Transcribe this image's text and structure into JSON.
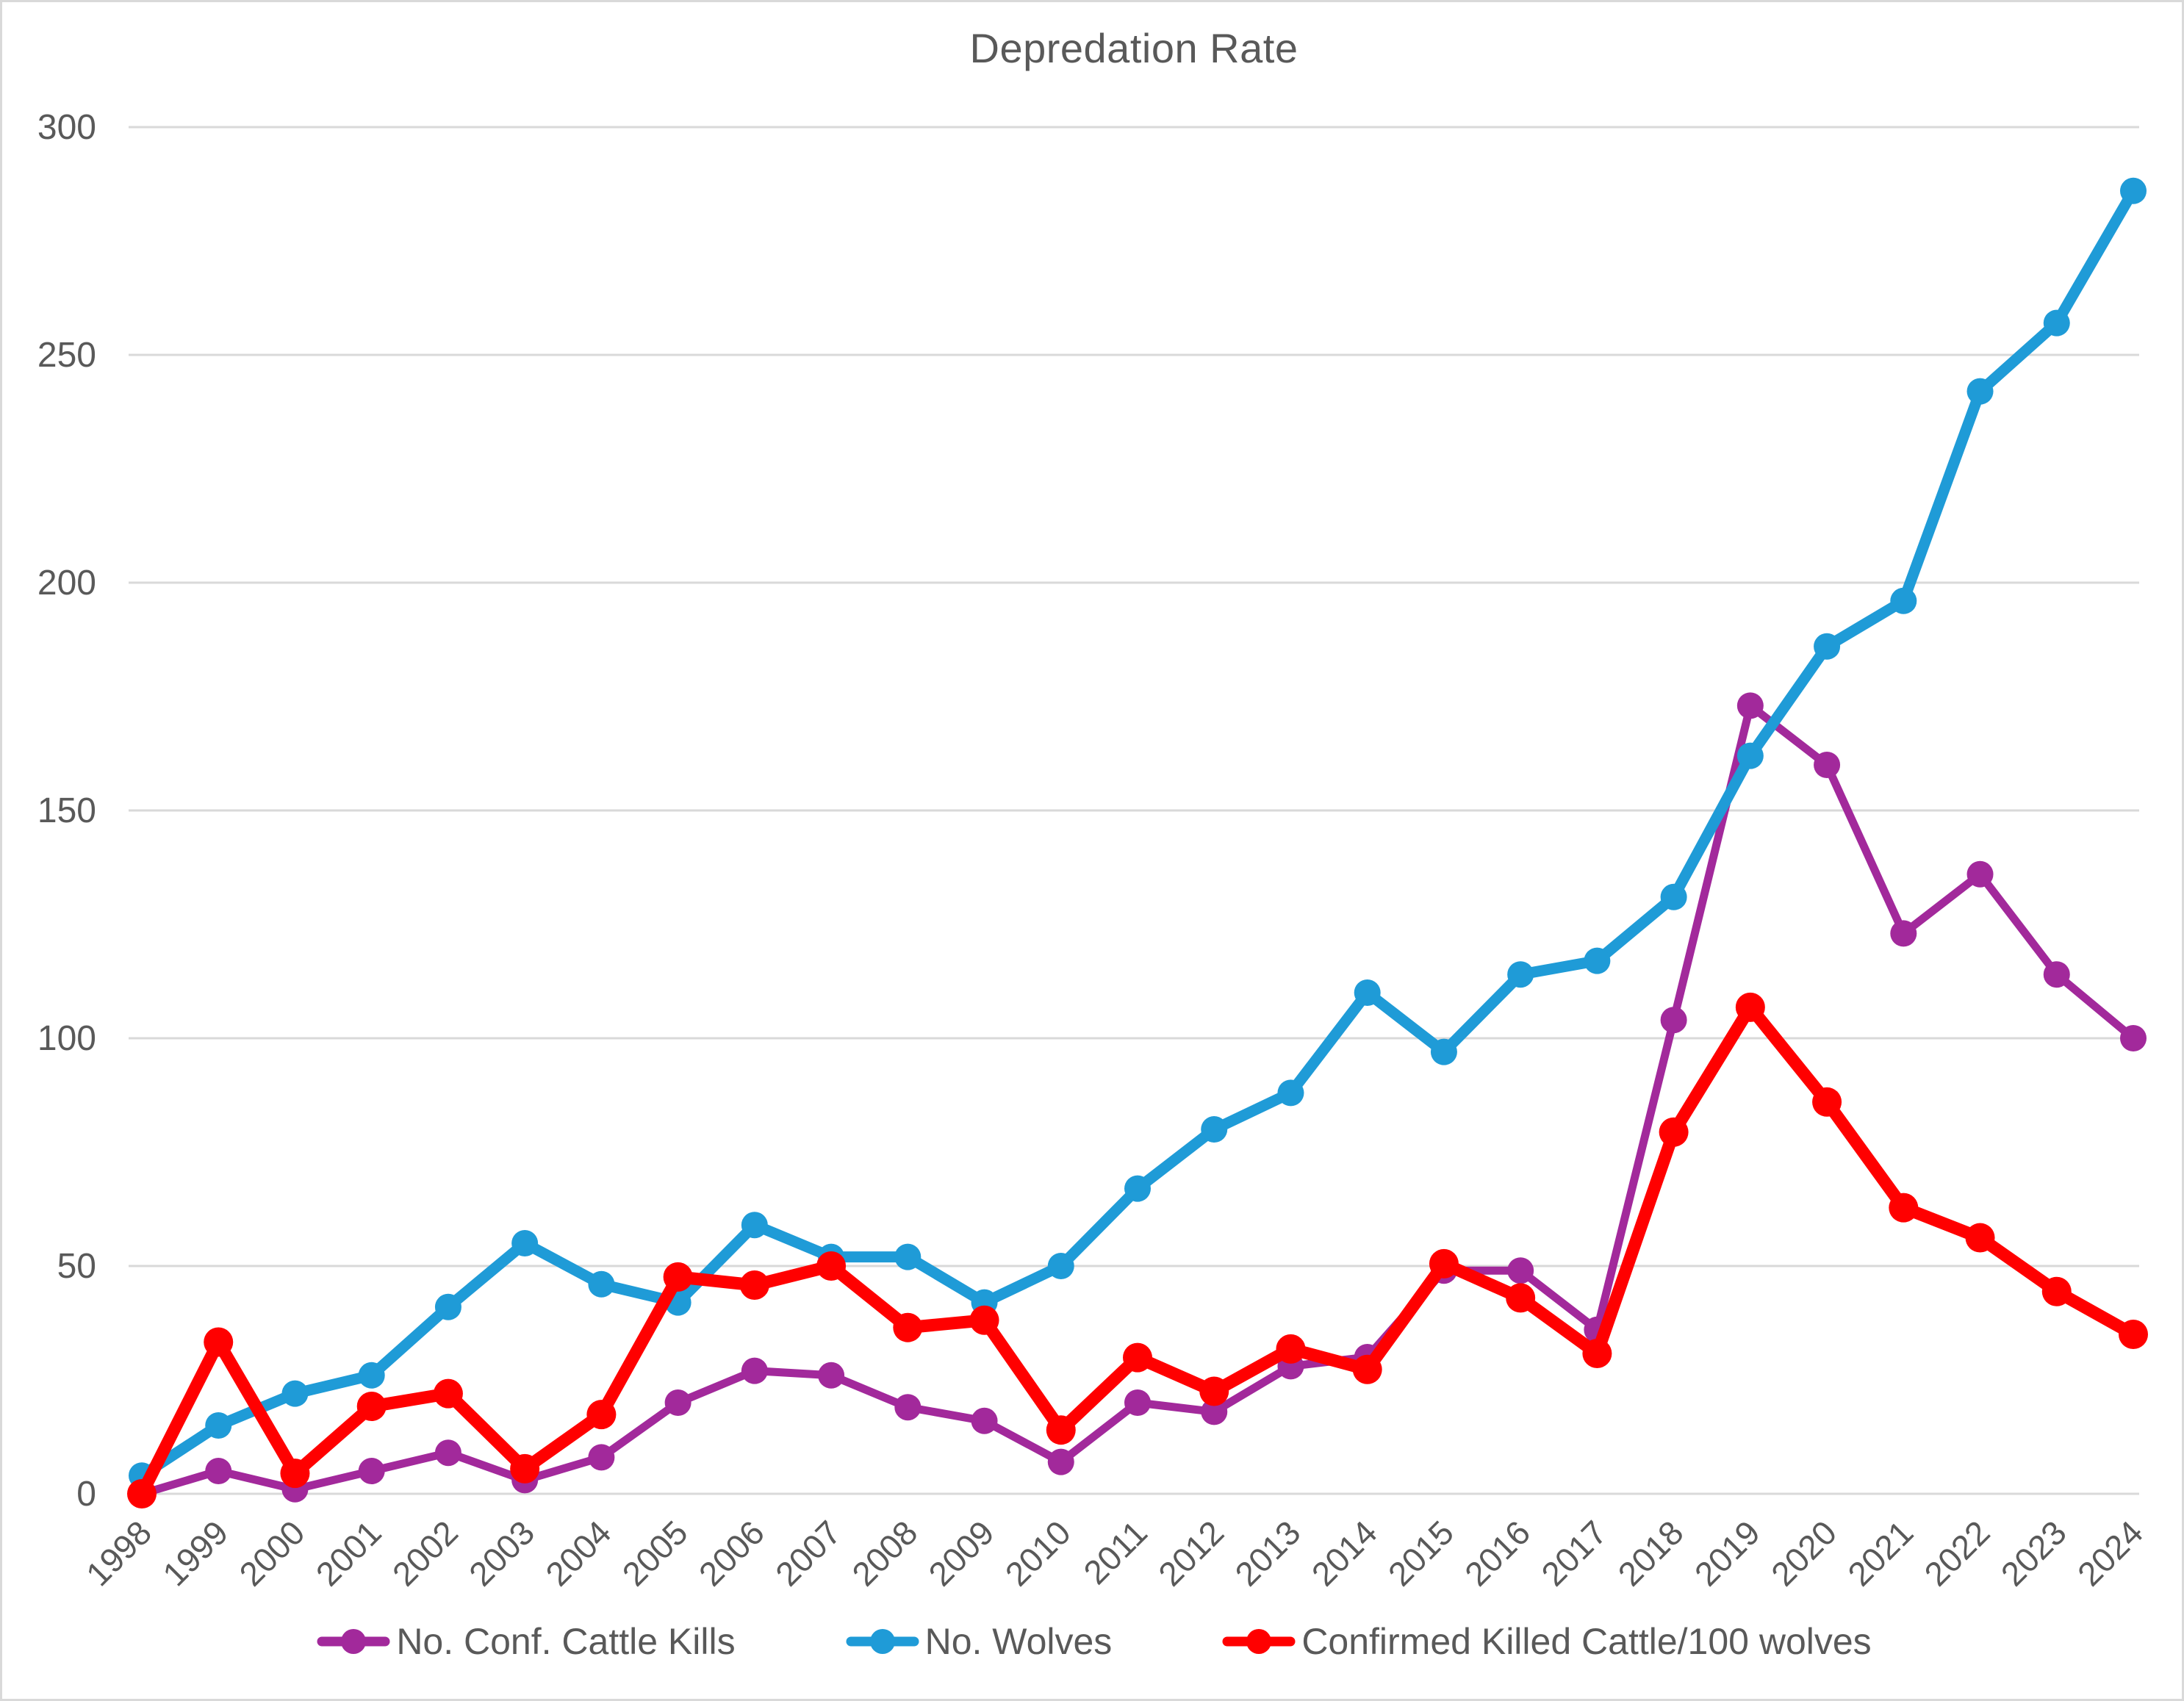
{
  "title": "Depredation Rate",
  "chart_data": {
    "type": "line",
    "title": "Depredation Rate",
    "categories": [
      "1998",
      "1999",
      "2000",
      "2001",
      "2002",
      "2003",
      "2004",
      "2005",
      "2006",
      "2007",
      "2008",
      "2009",
      "2010",
      "2011",
      "2012",
      "2013",
      "2014",
      "2015",
      "2016",
      "2017",
      "2018",
      "2019",
      "2020",
      "2021",
      "2022",
      "2023",
      "2024"
    ],
    "series": [
      {
        "name": "No. Conf. Cattle Kills",
        "color": "#A2299B",
        "values": [
          0,
          5,
          1,
          5,
          9,
          3,
          8,
          20,
          27,
          26,
          19,
          16,
          7,
          20,
          18,
          28,
          30,
          49,
          49,
          36,
          104,
          173,
          160,
          123,
          136,
          114,
          100
        ]
      },
      {
        "name": "No. Wolves",
        "color": "#1F9BD7",
        "values": [
          4,
          15,
          22,
          26,
          41,
          55,
          46,
          42,
          59,
          52,
          52,
          42,
          50,
          67,
          80,
          88,
          110,
          97,
          114,
          117,
          131,
          162,
          186,
          196,
          242,
          257,
          286
        ]
      },
      {
        "name": "Confirmed Killed Cattle/100 wolves",
        "color": "#FF0000",
        "values": [
          0,
          33.3,
          4.5,
          19.2,
          22,
          5.5,
          17.4,
          47.6,
          45.8,
          50,
          36.5,
          38.1,
          14,
          29.9,
          22.5,
          31.8,
          27.3,
          50.5,
          43,
          30.8,
          79.4,
          106.8,
          86,
          62.8,
          56.2,
          44.4,
          35
        ]
      }
    ],
    "xlabel": "",
    "ylabel": "",
    "ylim": [
      0,
      300
    ],
    "yticks": [
      0,
      50,
      100,
      150,
      200,
      250,
      300
    ],
    "grid": true,
    "legend_position": "bottom",
    "gridline_color": "#D9D9D9",
    "tick_label_color": "#595959",
    "title_color": "#595959"
  }
}
